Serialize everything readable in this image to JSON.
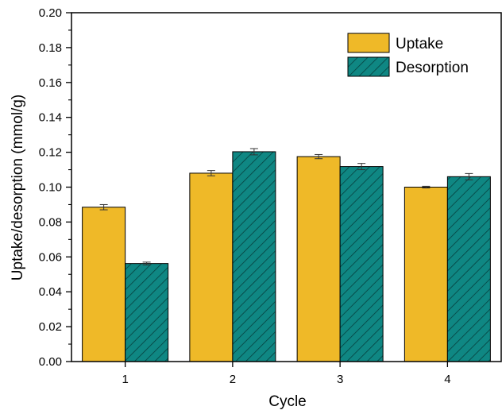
{
  "chart_data": {
    "type": "bar",
    "categories": [
      "1",
      "2",
      "3",
      "4"
    ],
    "series": [
      {
        "name": "Uptake",
        "color": "#efb928",
        "pattern": "solid",
        "values": [
          0.0885,
          0.108,
          0.1175,
          0.1
        ],
        "errors": [
          0.0015,
          0.0015,
          0.0012,
          0.0005
        ]
      },
      {
        "name": "Desorption",
        "color": "#0f8783",
        "pattern": "hatched",
        "values": [
          0.0562,
          0.1203,
          0.1118,
          0.106
        ],
        "errors": [
          0.0008,
          0.0018,
          0.0018,
          0.0018
        ]
      }
    ],
    "xlabel": "Cycle",
    "ylabel": "Uptake/desorption (mmol/g)",
    "ylim": [
      0,
      0.2
    ],
    "yticks": [
      "0.00",
      "0.02",
      "0.04",
      "0.06",
      "0.08",
      "0.10",
      "0.12",
      "0.14",
      "0.16",
      "0.18",
      "0.20"
    ],
    "grid": false,
    "legend_position": "top-right"
  }
}
